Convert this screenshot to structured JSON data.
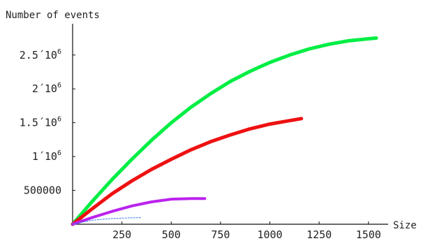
{
  "chart_data": {
    "type": "line",
    "xlabel": "Size",
    "ylabel": "Number of events",
    "xlim": [
      0,
      1600
    ],
    "ylim": [
      0,
      2900000
    ],
    "grid": false,
    "x_ticks": [
      {
        "value": 250,
        "label": "250"
      },
      {
        "value": 500,
        "label": "500"
      },
      {
        "value": 750,
        "label": "750"
      },
      {
        "value": 1000,
        "label": "1000"
      },
      {
        "value": 1250,
        "label": "1250"
      },
      {
        "value": 1500,
        "label": "1500"
      }
    ],
    "y_ticks": [
      {
        "value": 500000,
        "mantissa": "500000",
        "exponent": ""
      },
      {
        "value": 1000000,
        "mantissa": "1´10",
        "exponent": "6"
      },
      {
        "value": 1500000,
        "mantissa": "1.5´10",
        "exponent": "6"
      },
      {
        "value": 2000000,
        "mantissa": "2´10",
        "exponent": "6"
      },
      {
        "value": 2500000,
        "mantissa": "2.5´10",
        "exponent": "6"
      }
    ],
    "series": [
      {
        "color": "#00ee44",
        "x": [
          0,
          100,
          200,
          300,
          400,
          500,
          600,
          700,
          800,
          900,
          1000,
          1100,
          1200,
          1300,
          1400,
          1500,
          1540
        ],
        "y": [
          0,
          340000,
          660000,
          960000,
          1240000,
          1500000,
          1730000,
          1930000,
          2110000,
          2260000,
          2390000,
          2500000,
          2590000,
          2660000,
          2710000,
          2740000,
          2750000
        ]
      },
      {
        "color": "#ee1111",
        "x": [
          0,
          100,
          200,
          300,
          400,
          500,
          600,
          700,
          800,
          900,
          1000,
          1100,
          1160
        ],
        "y": [
          0,
          230000,
          450000,
          640000,
          810000,
          960000,
          1100000,
          1220000,
          1320000,
          1410000,
          1480000,
          1530000,
          1560000
        ]
      },
      {
        "color": "#bb22ee",
        "x": [
          0,
          100,
          200,
          300,
          400,
          500,
          600,
          670
        ],
        "y": [
          0,
          100000,
          190000,
          270000,
          330000,
          370000,
          380000,
          380000
        ]
      },
      {
        "color": "#3377ee",
        "x": [
          0,
          100,
          200,
          300,
          350
        ],
        "y": [
          0,
          60000,
          85000,
          95000,
          97000
        ]
      }
    ]
  }
}
